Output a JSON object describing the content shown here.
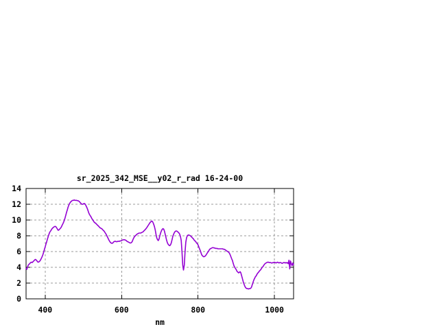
{
  "window": {
    "background": "#ffffff"
  },
  "chart": {
    "title": "sr_2025_342_MSE__y02_r_rad 16-24-00",
    "x_axis_label": "nm",
    "line_color": "#9400D3",
    "grid_color": "#999999",
    "frame_color": "#000000",
    "text_color": "#000000"
  },
  "chart_data": {
    "type": "line",
    "title": "sr_2025_342_MSE__y02_r_rad 16-24-00",
    "xlabel": "nm",
    "ylabel": "",
    "xlim": [
      350,
      1050
    ],
    "ylim": [
      0,
      14
    ],
    "xticks": [
      400,
      600,
      800,
      1000
    ],
    "yticks": [
      0,
      2,
      4,
      6,
      8,
      10,
      12,
      14
    ],
    "grid": true,
    "legend": "none",
    "x": {
      "start": 350,
      "step": 2,
      "end": 1050
    },
    "series": [
      {
        "color": "#9400D3",
        "y": [
          3.85,
          3.75,
          4.05,
          4.3,
          4.4,
          4.5,
          4.6,
          4.65,
          4.6,
          4.7,
          4.8,
          4.9,
          5.0,
          4.95,
          4.85,
          4.7,
          4.65,
          4.7,
          4.8,
          4.95,
          5.15,
          5.35,
          5.6,
          5.9,
          6.25,
          6.6,
          6.95,
          7.25,
          7.6,
          7.9,
          8.2,
          8.45,
          8.6,
          8.75,
          8.9,
          9.0,
          9.1,
          9.15,
          9.2,
          9.15,
          9.0,
          8.85,
          8.7,
          8.75,
          8.85,
          8.95,
          9.1,
          9.3,
          9.5,
          9.7,
          9.95,
          10.25,
          10.6,
          11.0,
          11.3,
          11.65,
          11.9,
          12.1,
          12.25,
          12.35,
          12.45,
          12.5,
          12.5,
          12.55,
          12.5,
          12.5,
          12.5,
          12.45,
          12.45,
          12.4,
          12.3,
          12.2,
          12.1,
          12.0,
          12.0,
          12.05,
          12.1,
          12.05,
          11.9,
          11.7,
          11.5,
          11.2,
          10.9,
          10.7,
          10.55,
          10.4,
          10.2,
          10.05,
          9.9,
          9.75,
          9.65,
          9.6,
          9.5,
          9.4,
          9.3,
          9.2,
          9.1,
          9.0,
          8.95,
          8.9,
          8.8,
          8.7,
          8.6,
          8.45,
          8.3,
          8.15,
          7.95,
          7.75,
          7.55,
          7.35,
          7.2,
          7.1,
          7.05,
          7.05,
          7.15,
          7.25,
          7.3,
          7.3,
          7.25,
          7.25,
          7.3,
          7.3,
          7.3,
          7.35,
          7.35,
          7.4,
          7.45,
          7.5,
          7.5,
          7.5,
          7.45,
          7.4,
          7.3,
          7.25,
          7.2,
          7.15,
          7.1,
          7.1,
          7.15,
          7.3,
          7.55,
          7.75,
          7.9,
          8.0,
          8.1,
          8.2,
          8.25,
          8.3,
          8.35,
          8.35,
          8.35,
          8.4,
          8.45,
          8.5,
          8.6,
          8.7,
          8.8,
          8.9,
          9.05,
          9.2,
          9.35,
          9.5,
          9.65,
          9.75,
          9.85,
          9.85,
          9.7,
          9.45,
          9.15,
          8.75,
          8.2,
          7.75,
          7.5,
          7.4,
          7.6,
          8.0,
          8.35,
          8.6,
          8.8,
          8.9,
          8.85,
          8.6,
          8.2,
          7.8,
          7.4,
          7.1,
          6.9,
          6.8,
          6.75,
          6.85,
          7.1,
          7.5,
          7.9,
          8.2,
          8.4,
          8.55,
          8.6,
          8.6,
          8.55,
          8.45,
          8.35,
          8.2,
          7.9,
          7.4,
          6.0,
          4.3,
          3.65,
          4.3,
          6.0,
          7.2,
          7.75,
          8.0,
          8.1,
          8.1,
          8.05,
          8.0,
          7.9,
          7.8,
          7.7,
          7.6,
          7.45,
          7.35,
          7.25,
          7.1,
          7.0,
          6.85,
          6.6,
          6.35,
          6.1,
          5.8,
          5.55,
          5.45,
          5.35,
          5.35,
          5.4,
          5.5,
          5.65,
          5.8,
          5.95,
          6.1,
          6.25,
          6.35,
          6.4,
          6.45,
          6.5,
          6.5,
          6.45,
          6.45,
          6.4,
          6.4,
          6.4,
          6.35,
          6.35,
          6.35,
          6.35,
          6.35,
          6.35,
          6.35,
          6.3,
          6.3,
          6.25,
          6.2,
          6.1,
          6.05,
          6.0,
          5.9,
          5.8,
          5.6,
          5.35,
          5.1,
          4.85,
          4.5,
          4.2,
          4.0,
          3.85,
          3.7,
          3.5,
          3.4,
          3.3,
          3.35,
          3.45,
          3.3,
          2.95,
          2.6,
          2.2,
          1.9,
          1.65,
          1.45,
          1.35,
          1.3,
          1.3,
          1.25,
          1.3,
          1.3,
          1.35,
          1.5,
          1.8,
          2.1,
          2.4,
          2.6,
          2.8,
          2.9,
          3.1,
          3.25,
          3.35,
          3.5,
          3.6,
          3.7,
          3.85,
          4.0,
          4.1,
          4.25,
          4.4,
          4.5,
          4.55,
          4.6,
          4.65,
          4.65,
          4.6,
          4.6,
          4.6,
          4.55,
          4.55,
          4.6,
          4.6,
          4.65,
          4.6,
          4.55,
          4.6,
          4.65,
          4.6,
          4.55,
          4.6,
          4.6,
          4.55,
          4.5,
          4.55,
          4.6,
          4.6,
          4.55,
          4.6,
          4.55,
          4.6,
          4.45,
          4.9,
          3.8,
          4.8,
          4.45,
          4.2,
          4.55,
          4.35
        ]
      }
    ]
  }
}
